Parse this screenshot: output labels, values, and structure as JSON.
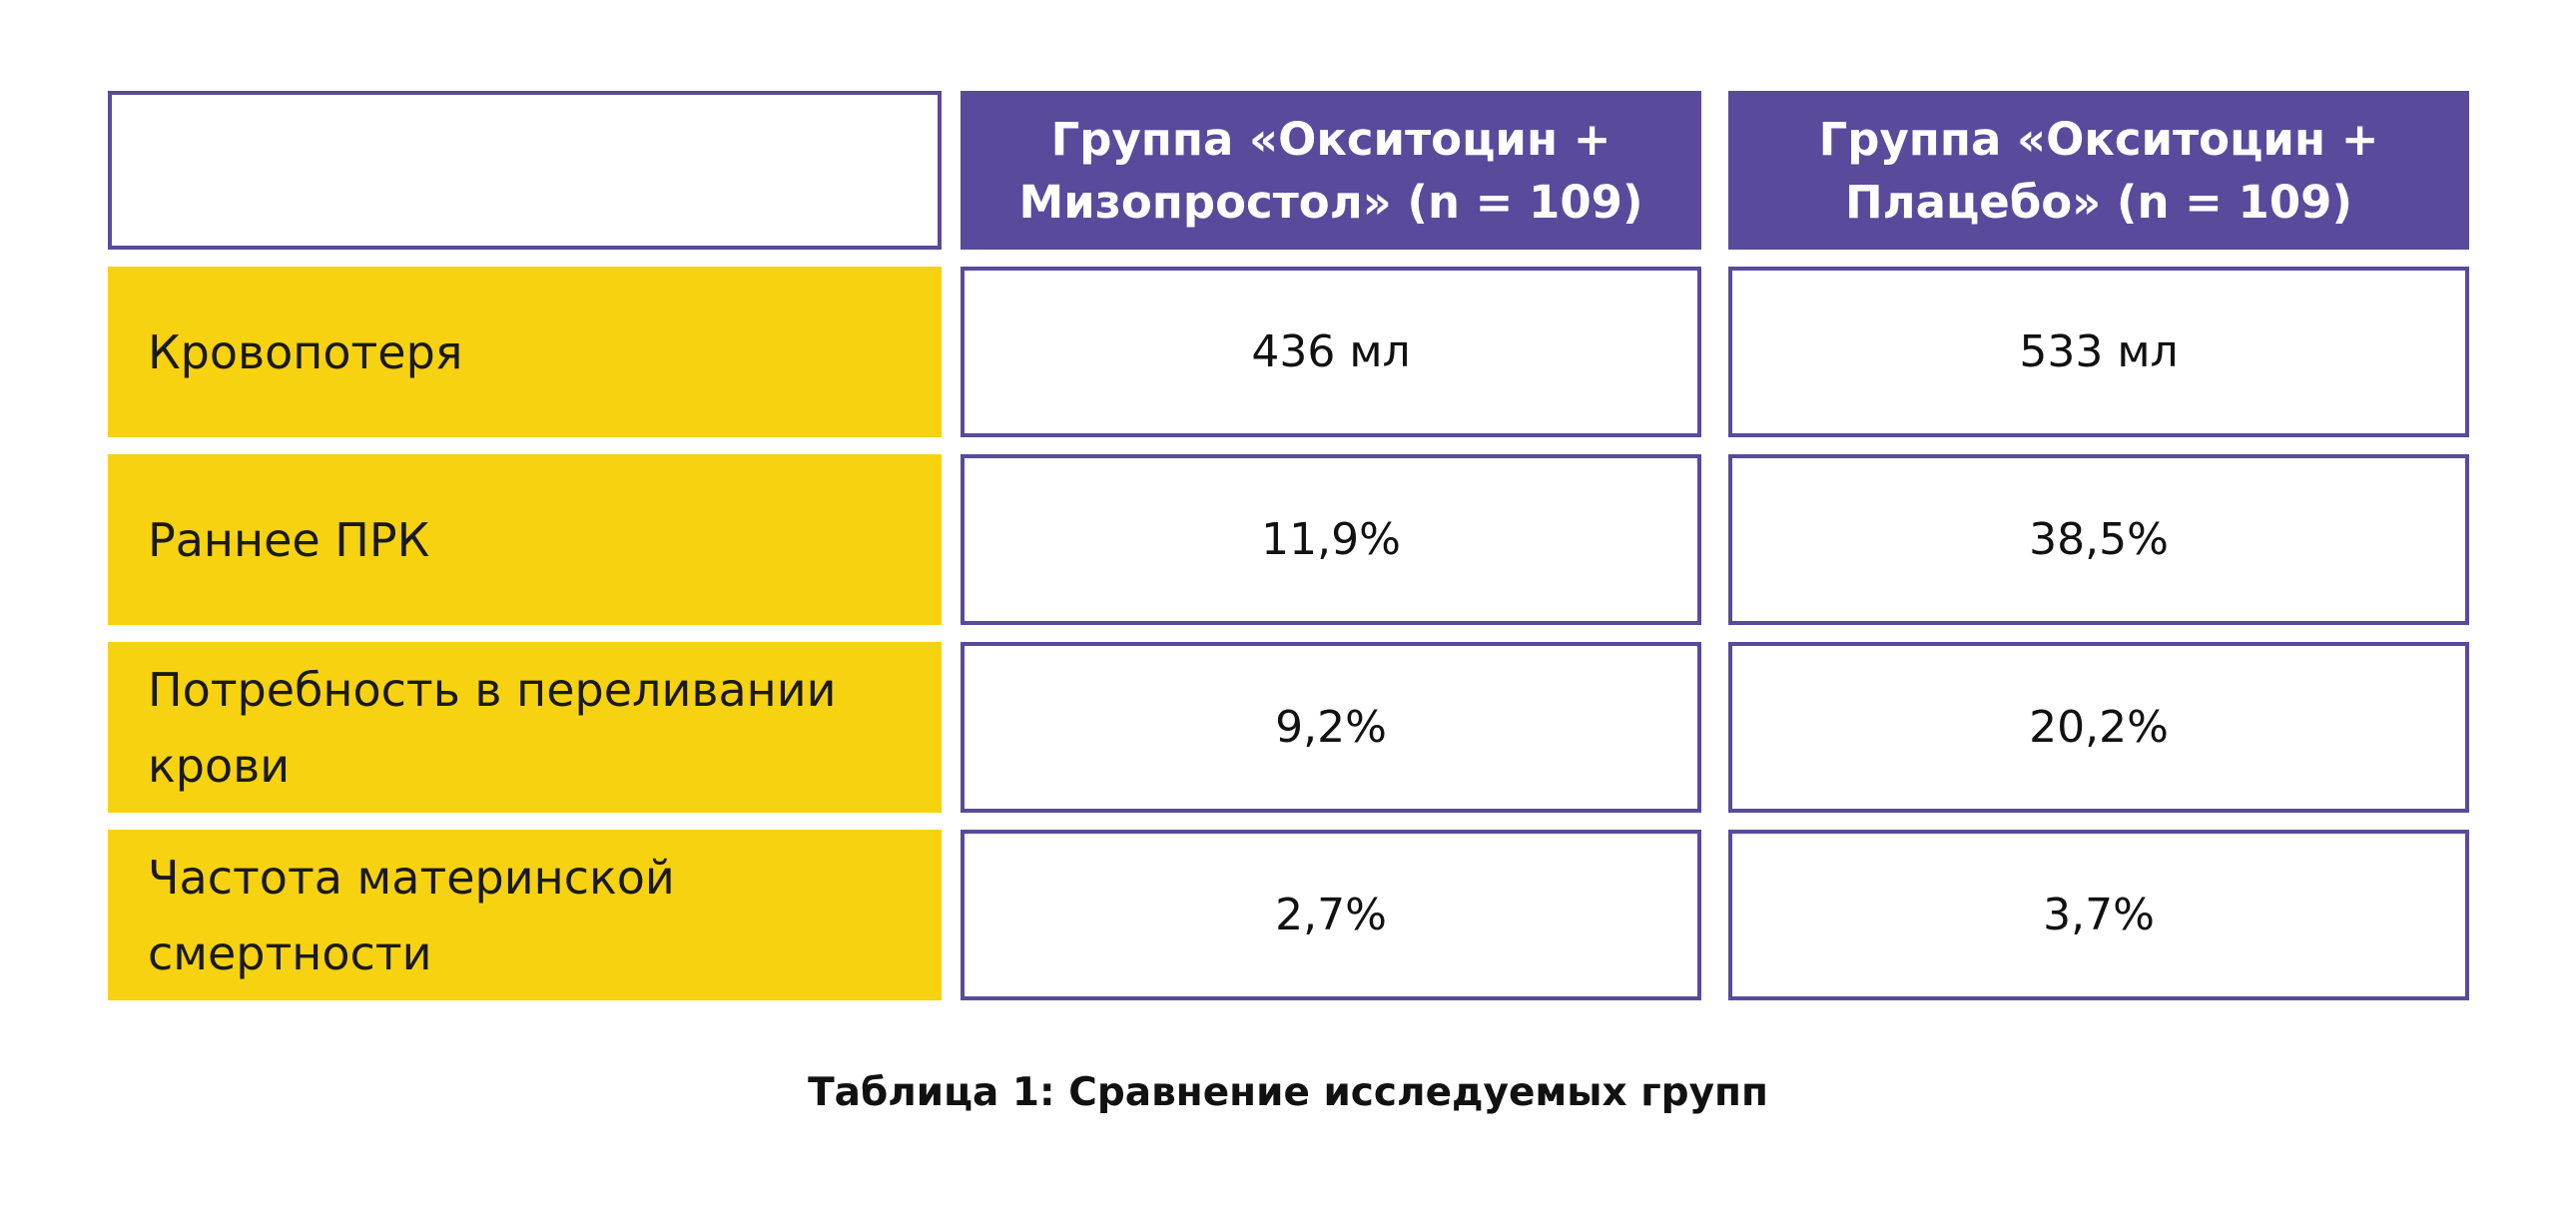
{
  "table": {
    "headers": [
      "",
      "Группа «Окситоцин + Мизопростол» (n = 109)",
      "Группа «Окситоцин + Плацебо» (n = 109)"
    ],
    "header_lines": [
      [
        "Группа «Окситоцин +",
        "Мизопростол» (n = 109)"
      ],
      [
        "Группа «Окситоцин +",
        "Плацебо» (n = 109)"
      ]
    ],
    "rows": [
      {
        "label_lines": [
          "Кровопотеря"
        ],
        "values": [
          "436 мл",
          "533 мл"
        ]
      },
      {
        "label_lines": [
          "Раннее ПРК"
        ],
        "values": [
          "11,9%",
          "38,5%"
        ]
      },
      {
        "label_lines": [
          "Потребность в переливании",
          "крови"
        ],
        "values": [
          "9,2%",
          "20,2%"
        ]
      },
      {
        "label_lines": [
          "Частота материнской",
          "смертности"
        ],
        "values": [
          "2,7%",
          "3,7%"
        ]
      }
    ]
  },
  "caption": "Таблица 1: Сравнение исследуемых групп",
  "colors": {
    "header_bg": "#5a4a9c",
    "header_text": "#ffffff",
    "row_label_bg": "#f7d211",
    "cell_border": "#5a4a9c"
  }
}
